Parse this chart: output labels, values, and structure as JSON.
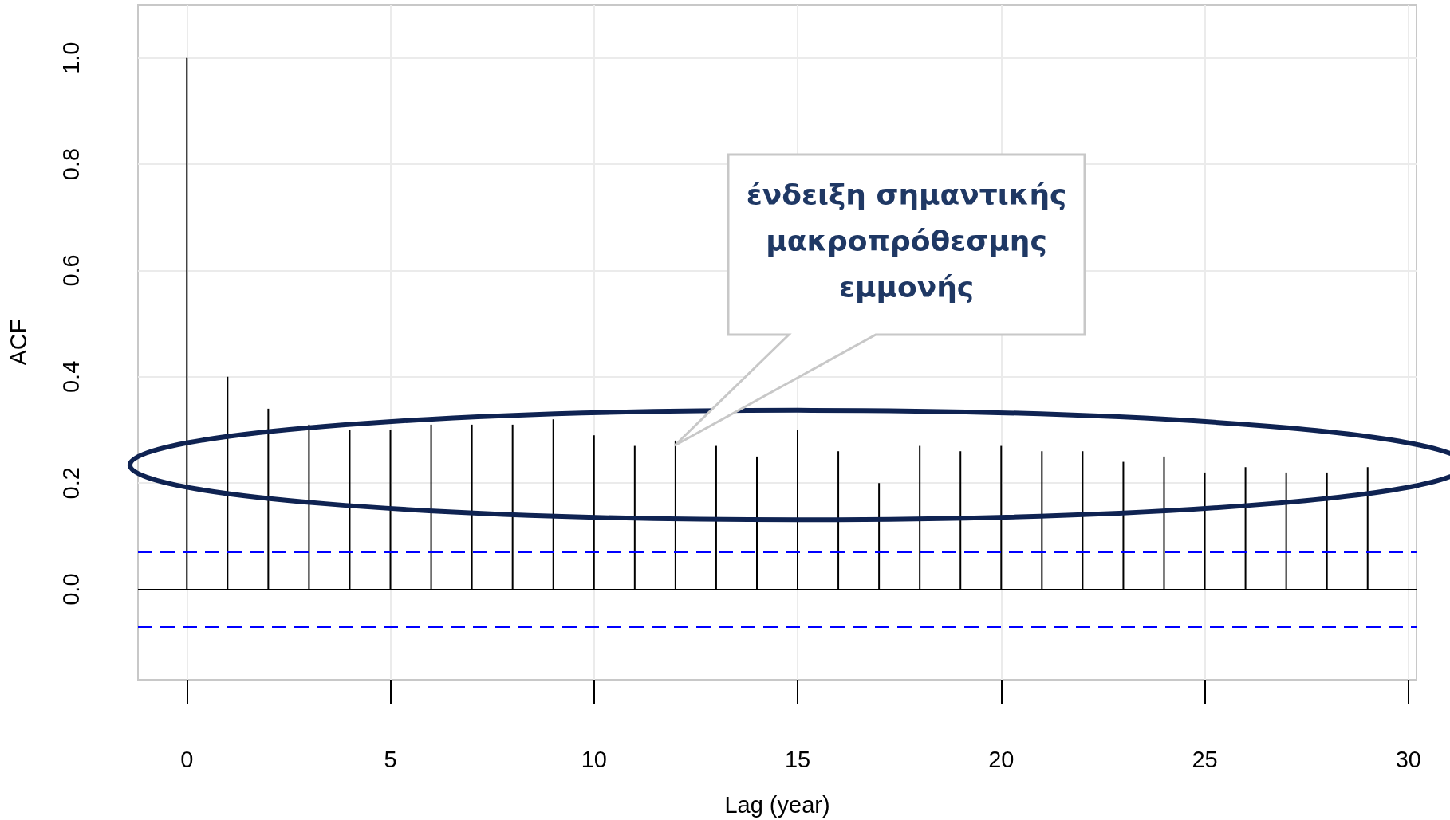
{
  "chart_data": {
    "type": "bar",
    "xlabel": "Lag (year)",
    "ylabel": "ACF",
    "x": [
      0,
      1,
      2,
      3,
      4,
      5,
      6,
      7,
      8,
      9,
      10,
      11,
      12,
      13,
      14,
      15,
      16,
      17,
      18,
      19,
      20,
      21,
      22,
      23,
      24,
      25,
      26,
      27,
      28,
      29
    ],
    "series": [
      {
        "color": "#000000",
        "values": [
          1.0,
          0.4,
          0.34,
          0.31,
          0.3,
          0.3,
          0.31,
          0.31,
          0.31,
          0.32,
          0.29,
          0.27,
          0.28,
          0.27,
          0.25,
          0.3,
          0.26,
          0.2,
          0.27,
          0.26,
          0.27,
          0.26,
          0.26,
          0.24,
          0.25,
          0.22,
          0.23,
          0.22,
          0.22,
          0.23
        ]
      }
    ],
    "xlim": [
      -1.2,
      30.2
    ],
    "xticks": [
      0,
      5,
      10,
      15,
      20,
      25,
      30
    ],
    "ylim": [
      -0.17,
      1.1
    ],
    "yticks": [
      {
        "value": 0,
        "label": "0.0"
      },
      {
        "value": 0.2,
        "label": "0.2"
      },
      {
        "value": 0.4,
        "label": "0.4"
      },
      {
        "value": 0.6,
        "label": "0.6"
      },
      {
        "value": 0.8,
        "label": "0.8"
      },
      {
        "value": 1,
        "label": "1.0"
      }
    ],
    "ref_lines": [
      {
        "axis": "y",
        "value": 0,
        "color": "#000000",
        "line_style": "solid"
      },
      {
        "axis": "y",
        "value": 0.07,
        "color": "#0000ff",
        "line_style": "dashed"
      },
      {
        "axis": "y",
        "value": -0.07,
        "color": "#0000ff",
        "line_style": "dashed"
      }
    ],
    "annotations": [
      "ένδειξη σημαντικής μακροπρόθεσμης εμμονής"
    ],
    "grid": true
  }
}
